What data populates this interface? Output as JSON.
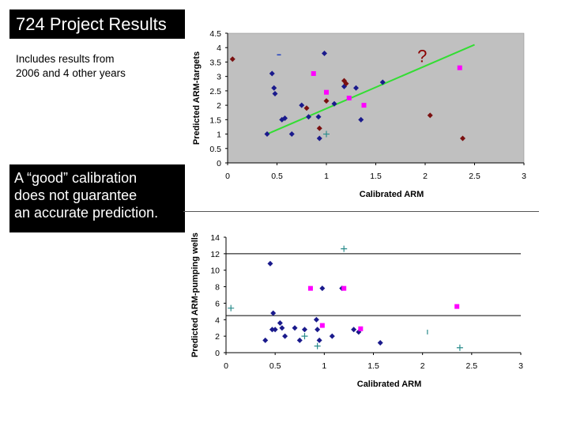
{
  "slide": {
    "title": "724 Project Results",
    "subtitle_lines": [
      "Includes results from",
      "2006 and 4 other years"
    ],
    "callout_lines": [
      "A “good” calibration",
      "does not guarantee",
      "an accurate prediction."
    ]
  },
  "chart_data": [
    {
      "type": "scatter",
      "xlabel": "Calibrated ARM",
      "ylabel": "Predicted ARM-targets",
      "xlim": [
        0,
        3
      ],
      "ylim": [
        0,
        4.5
      ],
      "xticks": [
        "0",
        "0.5",
        "1",
        "1.5",
        "2",
        "2.5",
        "3"
      ],
      "yticks": [
        "0",
        "0.5",
        "1",
        "1.5",
        "2",
        "2.5",
        "3",
        "3.5",
        "4",
        "4.5"
      ],
      "background": "#c0c0c0",
      "annotation": "?",
      "series": [
        {
          "marker": "diamond",
          "color": "#1a1a8c",
          "points": [
            [
              0.4,
              1.0
            ],
            [
              0.45,
              3.1
            ],
            [
              0.47,
              2.6
            ],
            [
              0.48,
              2.4
            ],
            [
              0.55,
              1.5
            ],
            [
              0.58,
              1.55
            ],
            [
              0.65,
              1.0
            ],
            [
              0.75,
              2.0
            ],
            [
              0.82,
              1.6
            ],
            [
              0.93,
              0.85
            ],
            [
              0.92,
              1.6
            ],
            [
              0.98,
              3.8
            ],
            [
              1.08,
              2.05
            ],
            [
              1.18,
              2.65
            ],
            [
              1.3,
              2.6
            ],
            [
              1.35,
              1.5
            ],
            [
              1.57,
              2.8
            ]
          ]
        },
        {
          "marker": "diamond",
          "color": "#7a1010",
          "points": [
            [
              0.05,
              3.6
            ],
            [
              0.8,
              1.9
            ],
            [
              0.93,
              1.2
            ],
            [
              1.0,
              2.15
            ],
            [
              1.18,
              2.85
            ],
            [
              1.2,
              2.75
            ],
            [
              2.05,
              1.65
            ],
            [
              2.38,
              0.85
            ]
          ]
        },
        {
          "marker": "square",
          "color": "#ff00ff",
          "points": [
            [
              0.87,
              3.1
            ],
            [
              1.0,
              2.45
            ],
            [
              1.23,
              2.25
            ],
            [
              1.38,
              2.0
            ],
            [
              2.35,
              3.3
            ]
          ]
        },
        {
          "marker": "plus",
          "color": "#2a8c8c",
          "points": [
            [
              1.0,
              1.0
            ]
          ]
        },
        {
          "marker": "dash",
          "color": "#2040c0",
          "points": [
            [
              0.52,
              3.75
            ]
          ]
        }
      ],
      "trendline": {
        "color": "#33dd33",
        "points": [
          [
            0.4,
            1.0
          ],
          [
            2.5,
            4.1
          ]
        ]
      }
    },
    {
      "type": "scatter",
      "xlabel": "Calibrated ARM",
      "ylabel": "Predicted ARM-pumping wells",
      "xlim": [
        0,
        3
      ],
      "ylim": [
        0,
        14
      ],
      "xticks": [
        "0",
        "0.5",
        "1",
        "1.5",
        "2",
        "2.5",
        "3"
      ],
      "yticks": [
        "0",
        "2",
        "4",
        "6",
        "8",
        "10",
        "12",
        "14"
      ],
      "background": "#ffffff",
      "series": [
        {
          "marker": "diamond",
          "color": "#1a1a8c",
          "points": [
            [
              0.4,
              1.5
            ],
            [
              0.45,
              10.8
            ],
            [
              0.47,
              2.8
            ],
            [
              0.48,
              4.8
            ],
            [
              0.5,
              2.8
            ],
            [
              0.55,
              3.6
            ],
            [
              0.57,
              3.0
            ],
            [
              0.6,
              2.0
            ],
            [
              0.7,
              3.0
            ],
            [
              0.75,
              1.5
            ],
            [
              0.8,
              2.8
            ],
            [
              0.92,
              4.0
            ],
            [
              0.93,
              2.8
            ],
            [
              0.95,
              1.5
            ],
            [
              0.98,
              7.8
            ],
            [
              1.08,
              2.0
            ],
            [
              1.18,
              7.8
            ],
            [
              1.3,
              2.8
            ],
            [
              1.35,
              2.5
            ],
            [
              1.57,
              1.2
            ]
          ]
        },
        {
          "marker": "square",
          "color": "#ff00ff",
          "points": [
            [
              0.86,
              7.8
            ],
            [
              0.98,
              3.3
            ],
            [
              1.2,
              7.8
            ],
            [
              1.37,
              2.9
            ],
            [
              2.35,
              5.6
            ]
          ]
        },
        {
          "marker": "plus",
          "color": "#2a8c8c",
          "points": [
            [
              0.05,
              5.4
            ],
            [
              0.8,
              2.0
            ],
            [
              0.93,
              0.8
            ],
            [
              1.2,
              12.6
            ],
            [
              2.38,
              0.6
            ]
          ]
        },
        {
          "marker": "tick",
          "color": "#2a8c8c",
          "points": [
            [
              2.05,
              2.5
            ]
          ]
        }
      ],
      "reference_lines": [
        4.5,
        12
      ]
    }
  ]
}
